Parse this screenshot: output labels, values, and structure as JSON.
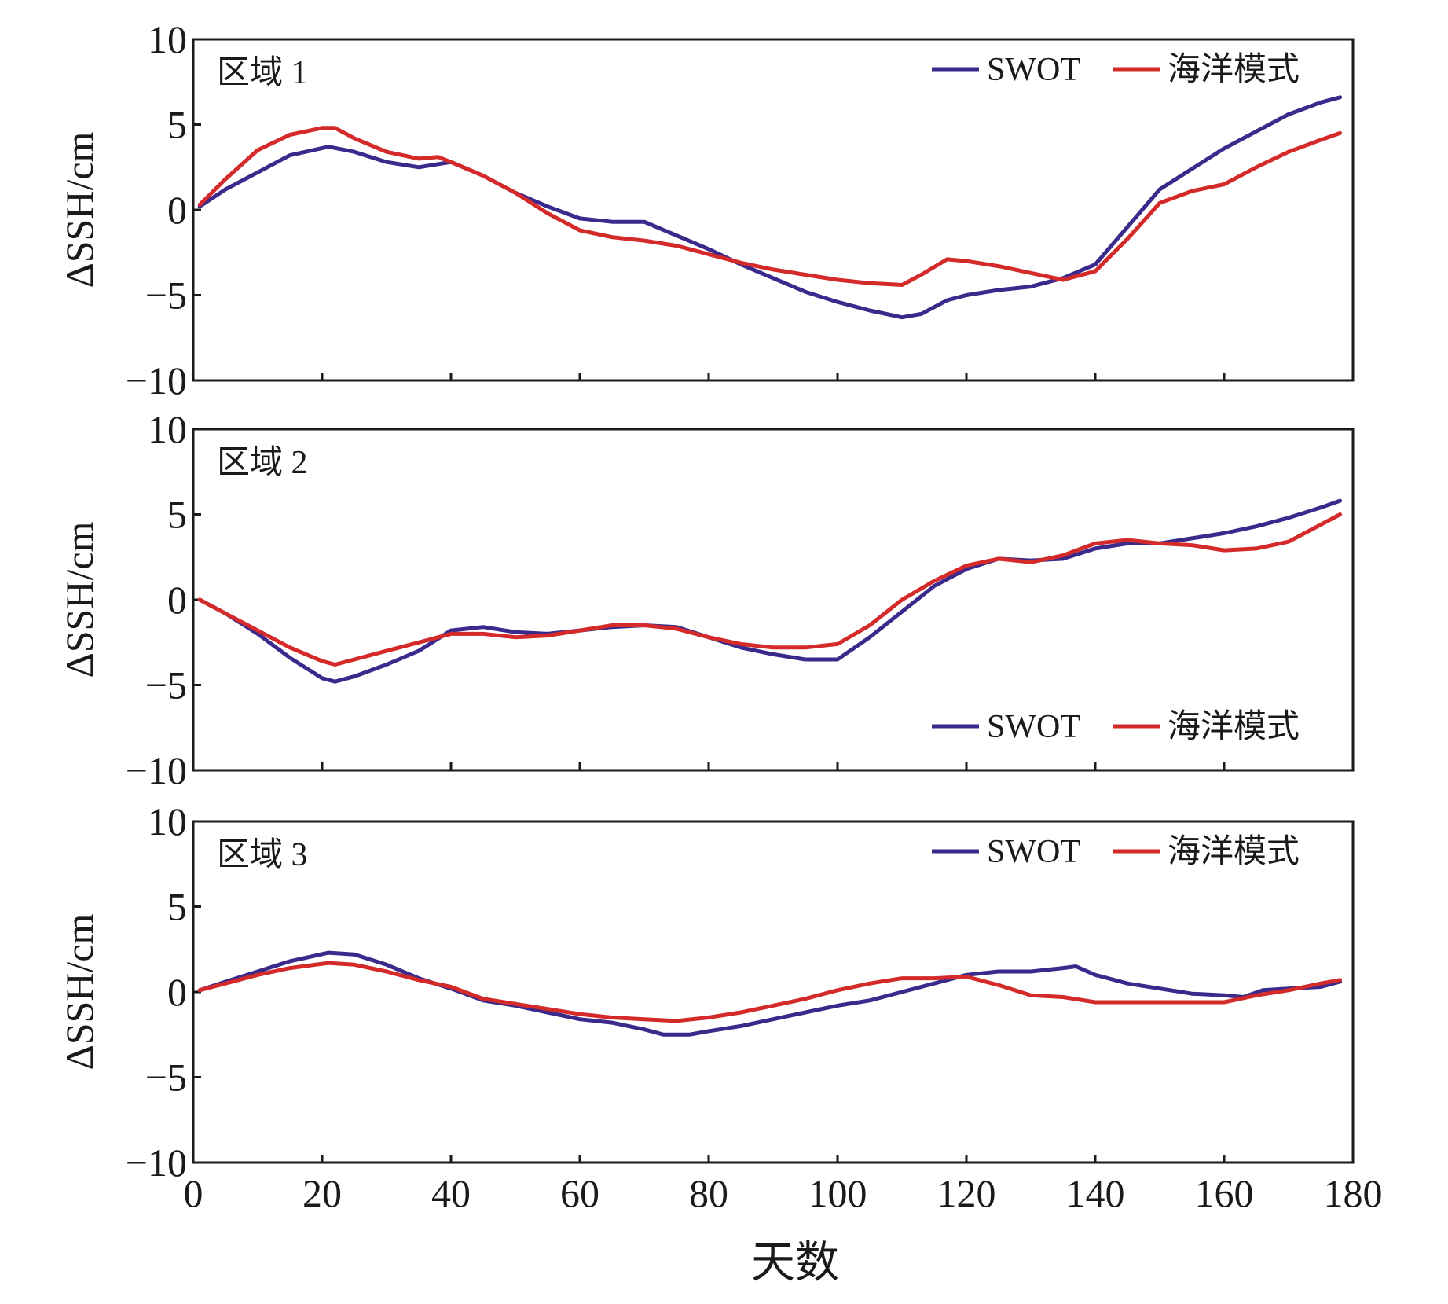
{
  "xlabel": "天数",
  "chart_data": [
    {
      "type": "line",
      "title": "区域 1",
      "ylabel": "ΔSSH/cm",
      "xlim": [
        0,
        180
      ],
      "ylim": [
        -10,
        10
      ],
      "xticks": [
        0,
        20,
        40,
        60,
        80,
        100,
        120,
        140,
        160,
        180
      ],
      "yticks": [
        -10,
        -5,
        0,
        5,
        10
      ],
      "ytick_labels": [
        "−10",
        "−5",
        "0",
        "5",
        "10"
      ],
      "legend_position": "top-right",
      "series": [
        {
          "name": "SWOT",
          "color": "#3b2a8c",
          "x": [
            1,
            5,
            10,
            15,
            21,
            25,
            30,
            35,
            40,
            45,
            50,
            55,
            60,
            65,
            70,
            75,
            80,
            85,
            90,
            95,
            100,
            105,
            110,
            113,
            117,
            120,
            125,
            130,
            135,
            140,
            145,
            150,
            155,
            160,
            165,
            170,
            175,
            178
          ],
          "y": [
            0.2,
            1.2,
            2.2,
            3.2,
            3.7,
            3.4,
            2.8,
            2.5,
            2.8,
            2.0,
            1.0,
            0.2,
            -0.5,
            -0.7,
            -0.7,
            -1.5,
            -2.3,
            -3.2,
            -4.0,
            -4.8,
            -5.4,
            -5.9,
            -6.3,
            -6.1,
            -5.3,
            -5.0,
            -4.7,
            -4.5,
            -4.0,
            -3.2,
            -1.0,
            1.2,
            2.4,
            3.6,
            4.6,
            5.6,
            6.3,
            6.6
          ]
        },
        {
          "name": "海洋模式",
          "color": "#d42a2a",
          "x": [
            1,
            5,
            10,
            15,
            20,
            22,
            25,
            30,
            35,
            38,
            40,
            45,
            50,
            55,
            60,
            65,
            70,
            75,
            80,
            85,
            90,
            95,
            100,
            105,
            110,
            113,
            117,
            120,
            125,
            130,
            135,
            140,
            145,
            150,
            155,
            160,
            165,
            170,
            175,
            178
          ],
          "y": [
            0.3,
            1.8,
            3.5,
            4.4,
            4.8,
            4.8,
            4.2,
            3.4,
            3.0,
            3.1,
            2.8,
            2.0,
            1.0,
            -0.2,
            -1.2,
            -1.6,
            -1.8,
            -2.1,
            -2.6,
            -3.1,
            -3.5,
            -3.8,
            -4.1,
            -4.3,
            -4.4,
            -3.8,
            -2.9,
            -3.0,
            -3.3,
            -3.7,
            -4.1,
            -3.6,
            -1.7,
            0.4,
            1.1,
            1.5,
            2.5,
            3.4,
            4.1,
            4.5
          ]
        }
      ]
    },
    {
      "type": "line",
      "title": "区域 2",
      "ylabel": "ΔSSH/cm",
      "xlim": [
        0,
        180
      ],
      "ylim": [
        -10,
        10
      ],
      "xticks": [
        0,
        20,
        40,
        60,
        80,
        100,
        120,
        140,
        160,
        180
      ],
      "yticks": [
        -10,
        -5,
        0,
        5,
        10
      ],
      "ytick_labels": [
        "−10",
        "−5",
        "0",
        "5",
        "10"
      ],
      "legend_position": "bottom-right",
      "series": [
        {
          "name": "SWOT",
          "color": "#3b2a8c",
          "x": [
            1,
            5,
            10,
            15,
            20,
            22,
            25,
            30,
            35,
            40,
            45,
            50,
            55,
            60,
            65,
            70,
            75,
            80,
            85,
            90,
            95,
            100,
            105,
            110,
            115,
            120,
            125,
            130,
            135,
            140,
            145,
            150,
            155,
            160,
            165,
            170,
            175,
            178
          ],
          "y": [
            0,
            -0.8,
            -2.0,
            -3.4,
            -4.6,
            -4.8,
            -4.5,
            -3.8,
            -3.0,
            -1.8,
            -1.6,
            -1.9,
            -2.0,
            -1.8,
            -1.6,
            -1.5,
            -1.6,
            -2.2,
            -2.8,
            -3.2,
            -3.5,
            -3.5,
            -2.2,
            -0.7,
            0.8,
            1.8,
            2.4,
            2.3,
            2.4,
            3.0,
            3.3,
            3.3,
            3.6,
            3.9,
            4.3,
            4.8,
            5.4,
            5.8
          ]
        },
        {
          "name": "海洋模式",
          "color": "#d42a2a",
          "x": [
            1,
            5,
            10,
            15,
            20,
            22,
            25,
            30,
            35,
            40,
            45,
            50,
            55,
            60,
            65,
            70,
            75,
            80,
            85,
            90,
            95,
            100,
            105,
            110,
            115,
            120,
            125,
            130,
            135,
            140,
            145,
            150,
            155,
            160,
            165,
            170,
            175,
            178
          ],
          "y": [
            0,
            -0.8,
            -1.8,
            -2.8,
            -3.6,
            -3.8,
            -3.5,
            -3.0,
            -2.5,
            -2.0,
            -2.0,
            -2.2,
            -2.1,
            -1.8,
            -1.5,
            -1.5,
            -1.7,
            -2.2,
            -2.6,
            -2.8,
            -2.8,
            -2.6,
            -1.5,
            0,
            1.1,
            2.0,
            2.4,
            2.2,
            2.6,
            3.3,
            3.5,
            3.3,
            3.2,
            2.9,
            3.0,
            3.4,
            4.4,
            5.0
          ]
        }
      ]
    },
    {
      "type": "line",
      "title": "区域 3",
      "ylabel": "ΔSSH/cm",
      "xlim": [
        0,
        180
      ],
      "ylim": [
        -10,
        10
      ],
      "xticks": [
        0,
        20,
        40,
        60,
        80,
        100,
        120,
        140,
        160,
        180
      ],
      "xtick_labels": [
        "0",
        "20",
        "40",
        "60",
        "80",
        "100",
        "120",
        "140",
        "160",
        "180"
      ],
      "yticks": [
        -10,
        -5,
        0,
        5,
        10
      ],
      "ytick_labels": [
        "−10",
        "−5",
        "0",
        "5",
        "10"
      ],
      "legend_position": "top-right",
      "series": [
        {
          "name": "SWOT",
          "color": "#3b2a8c",
          "x": [
            1,
            5,
            10,
            15,
            21,
            25,
            30,
            35,
            40,
            45,
            50,
            55,
            60,
            65,
            70,
            73,
            77,
            80,
            85,
            90,
            95,
            100,
            105,
            110,
            115,
            120,
            125,
            130,
            135,
            137,
            140,
            145,
            150,
            155,
            160,
            163,
            166,
            170,
            175,
            178
          ],
          "y": [
            0.1,
            0.6,
            1.2,
            1.8,
            2.3,
            2.2,
            1.6,
            0.8,
            0.2,
            -0.5,
            -0.8,
            -1.2,
            -1.6,
            -1.8,
            -2.2,
            -2.5,
            -2.5,
            -2.3,
            -2.0,
            -1.6,
            -1.2,
            -0.8,
            -0.5,
            0,
            0.5,
            1.0,
            1.2,
            1.2,
            1.4,
            1.5,
            1.0,
            0.5,
            0.2,
            -0.1,
            -0.2,
            -0.3,
            0.1,
            0.2,
            0.3,
            0.6
          ]
        },
        {
          "name": "海洋模式",
          "color": "#d42a2a",
          "x": [
            1,
            5,
            10,
            15,
            21,
            25,
            30,
            35,
            40,
            45,
            50,
            55,
            60,
            65,
            70,
            75,
            80,
            85,
            90,
            95,
            100,
            105,
            110,
            115,
            120,
            125,
            130,
            135,
            140,
            145,
            150,
            155,
            160,
            165,
            170,
            175,
            178
          ],
          "y": [
            0.1,
            0.5,
            1.0,
            1.4,
            1.7,
            1.6,
            1.2,
            0.7,
            0.3,
            -0.4,
            -0.7,
            -1.0,
            -1.3,
            -1.5,
            -1.6,
            -1.7,
            -1.5,
            -1.2,
            -0.8,
            -0.4,
            0.1,
            0.5,
            0.8,
            0.8,
            0.9,
            0.4,
            -0.2,
            -0.3,
            -0.6,
            -0.6,
            -0.6,
            -0.6,
            -0.6,
            -0.2,
            0.1,
            0.5,
            0.7
          ]
        }
      ]
    }
  ]
}
